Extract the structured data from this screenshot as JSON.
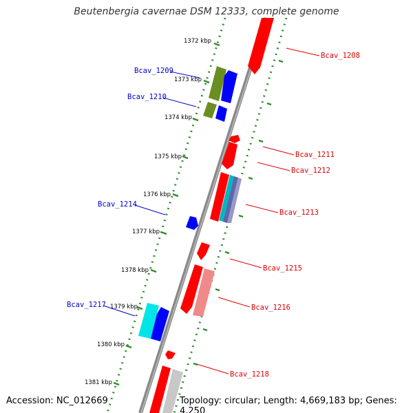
{
  "title": "Beutenbergia cavernae DSM 12333, complete genome",
  "footer": {
    "accession": "Accession: NC_012669",
    "summary": "Topology: circular; Length: 4,669,183 bp; Genes: 4,250"
  },
  "colors": {
    "forward": "#ff0000",
    "reverse": "#0000ff",
    "forward_text": "#dd0000",
    "reverse_text": "#0000cc",
    "backbone": "#888888",
    "tick": "#2e8b2e"
  },
  "ticks": [
    {
      "label": "1372 kbp"
    },
    {
      "label": "1373 kbp"
    },
    {
      "label": "1374 kbp"
    },
    {
      "label": "1375 kbp"
    },
    {
      "label": "1376 kbp"
    },
    {
      "label": "1377 kbp"
    },
    {
      "label": "1378 kbp"
    },
    {
      "label": "1379 kbp"
    },
    {
      "label": "1380 kbp"
    },
    {
      "label": "1381 kbp"
    }
  ],
  "gene_labels": {
    "left": [
      "Bcav_1209",
      "Bcav_1210",
      "Bcav_1214",
      "Bcav_1217"
    ],
    "right": [
      "Bcav_1208",
      "Bcav_1211",
      "Bcav_1212",
      "Bcav_1213",
      "Bcav_1215",
      "Bcav_1216",
      "Bcav_1218"
    ]
  }
}
